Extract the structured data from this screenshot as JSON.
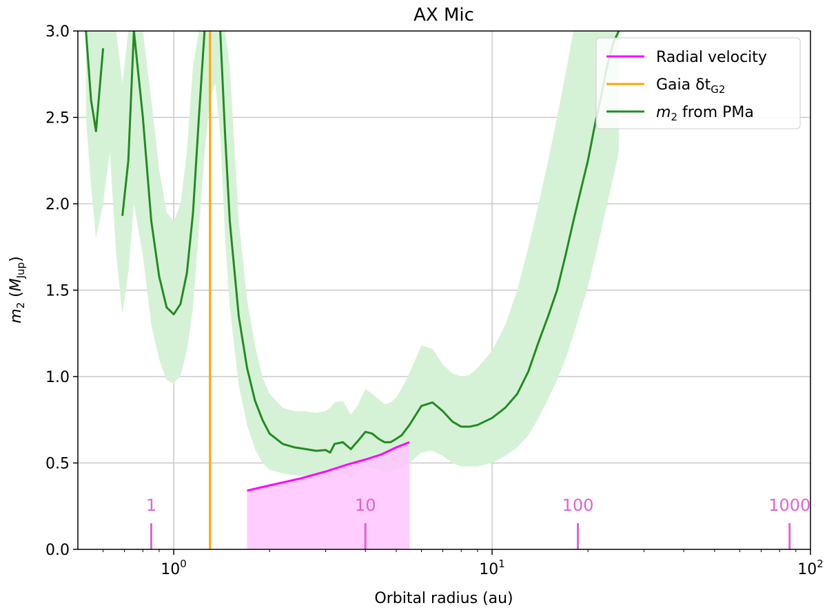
{
  "chart_data": {
    "type": "line",
    "title": "AX Mic",
    "xlabel": "Orbital radius (au)",
    "ylabel": {
      "main": "m",
      "sub2": "2",
      "paren_open": " (",
      "m_main": "M",
      "m_sub": "Jup",
      "paren_close": ")"
    },
    "xscale": "log",
    "xlim": [
      0.5,
      100
    ],
    "ylim": [
      0,
      3.0
    ],
    "grid": true,
    "legend_position": "top-right",
    "xticks": [
      {
        "value": 1,
        "base": "10",
        "exp": "0"
      },
      {
        "value": 10,
        "base": "10",
        "exp": "1"
      },
      {
        "value": 100,
        "base": "10",
        "exp": "2"
      }
    ],
    "yticks": [
      "0.0",
      "0.5",
      "1.0",
      "1.5",
      "2.0",
      "2.5",
      "3.0"
    ],
    "colors": {
      "rv": "#ff00ff",
      "rv_fill": "#ffc4ff",
      "gaia": "#ffa500",
      "pma": "#228b22",
      "pma_band": "#d6f2d6",
      "period": "#dd66cc",
      "grid": "#c8c8c8"
    },
    "series": [
      {
        "name": "Radial velocity",
        "kind": "rv_limit",
        "x": [
          1.7,
          2.0,
          2.5,
          3.0,
          3.5,
          4.0,
          4.5,
          5.0,
          5.5
        ],
        "y": [
          0.34,
          0.37,
          0.41,
          0.45,
          0.49,
          0.52,
          0.55,
          0.59,
          0.62
        ]
      },
      {
        "name": "Gaia δt",
        "name_sub": "G2",
        "kind": "vline",
        "x": 1.3
      },
      {
        "name": " from PMa",
        "name_m": "m",
        "name_sub": "2",
        "kind": "pma",
        "x": [
          0.53,
          0.55,
          0.57,
          0.6,
          0.63,
          0.66,
          0.69,
          0.72,
          0.75,
          0.8,
          0.85,
          0.9,
          0.95,
          1.0,
          1.05,
          1.1,
          1.15,
          1.2,
          1.25,
          1.3,
          1.35,
          1.4,
          1.45,
          1.5,
          1.6,
          1.7,
          1.8,
          1.9,
          2.0,
          2.2,
          2.4,
          2.6,
          2.8,
          3.0,
          3.1,
          3.2,
          3.4,
          3.6,
          3.8,
          4.0,
          4.2,
          4.4,
          4.6,
          4.8,
          5.0,
          5.2,
          5.5,
          6.0,
          6.5,
          7.0,
          7.5,
          8.0,
          8.5,
          9.0,
          10.0,
          11.0,
          12.0,
          13.0,
          14.0,
          15.0,
          16.0,
          17.0,
          18.0,
          19.0,
          20.0,
          21.0,
          22.0,
          23.0,
          24.0,
          25.0
        ],
        "y": [
          3.0,
          2.6,
          2.42,
          2.9,
          null,
          null,
          1.93,
          2.25,
          3.0,
          2.5,
          1.9,
          1.58,
          1.4,
          1.36,
          1.42,
          1.6,
          1.95,
          2.5,
          3.0,
          null,
          null,
          3.0,
          2.4,
          1.9,
          1.35,
          1.05,
          0.86,
          0.75,
          0.67,
          0.61,
          0.59,
          0.58,
          0.57,
          0.575,
          0.56,
          0.61,
          0.62,
          0.58,
          0.63,
          0.68,
          0.67,
          0.64,
          0.62,
          0.62,
          0.64,
          0.66,
          0.72,
          0.83,
          0.85,
          0.8,
          0.74,
          0.71,
          0.71,
          0.72,
          0.76,
          0.82,
          0.9,
          1.03,
          1.2,
          1.35,
          1.5,
          1.7,
          1.9,
          2.08,
          2.25,
          2.45,
          2.62,
          2.8,
          2.93,
          3.0
        ],
        "band_upper": [
          3.0,
          3.0,
          3.0,
          3.0,
          3.0,
          3.0,
          2.7,
          3.0,
          3.0,
          3.0,
          2.6,
          2.2,
          1.95,
          1.9,
          2.0,
          2.3,
          2.8,
          3.0,
          3.0,
          3.0,
          3.0,
          3.0,
          3.0,
          2.8,
          1.9,
          1.45,
          1.18,
          1.0,
          0.9,
          0.82,
          0.8,
          0.8,
          0.79,
          0.8,
          0.82,
          0.85,
          0.86,
          0.78,
          0.84,
          0.93,
          0.9,
          0.87,
          0.84,
          0.85,
          0.88,
          0.93,
          1.02,
          1.18,
          1.16,
          1.07,
          1.02,
          1.0,
          1.01,
          1.05,
          1.15,
          1.3,
          1.5,
          1.75,
          2.0,
          2.25,
          2.5,
          2.75,
          3.0,
          3.0,
          3.0,
          3.0,
          3.0,
          3.0,
          3.0,
          3.0
        ],
        "band_lower": [
          2.5,
          2.1,
          1.8,
          2.0,
          2.3,
          1.7,
          1.36,
          1.6,
          2.0,
          1.7,
          1.3,
          1.1,
          0.98,
          0.96,
          1.0,
          1.15,
          1.4,
          1.85,
          2.3,
          2.6,
          2.7,
          2.4,
          1.8,
          1.4,
          0.95,
          0.72,
          0.58,
          0.5,
          0.46,
          0.44,
          0.43,
          0.42,
          0.41,
          0.41,
          0.4,
          0.43,
          0.44,
          0.41,
          0.45,
          0.48,
          0.47,
          0.46,
          0.45,
          0.45,
          0.46,
          0.47,
          0.5,
          0.56,
          0.57,
          0.54,
          0.5,
          0.48,
          0.48,
          0.48,
          0.5,
          0.54,
          0.59,
          0.66,
          0.76,
          0.87,
          0.98,
          1.1,
          1.24,
          1.38,
          1.52,
          1.68,
          1.84,
          2.0,
          2.15,
          2.3
        ]
      }
    ],
    "rv_detection_region": {
      "x": [
        1.7,
        5.5
      ]
    },
    "period_axis": {
      "labels": [
        "1",
        "10",
        "100",
        "1000"
      ],
      "positions": [
        0.85,
        4.0,
        18.6,
        86.0
      ]
    }
  }
}
